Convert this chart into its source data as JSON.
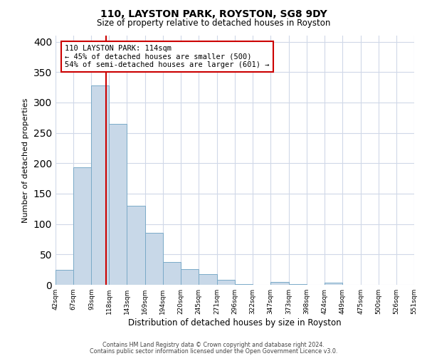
{
  "title": "110, LAYSTON PARK, ROYSTON, SG8 9DY",
  "subtitle": "Size of property relative to detached houses in Royston",
  "xlabel": "Distribution of detached houses by size in Royston",
  "ylabel": "Number of detached properties",
  "bin_edges": [
    42,
    67,
    93,
    118,
    143,
    169,
    194,
    220,
    245,
    271,
    296,
    322,
    347,
    373,
    398,
    424,
    449,
    475,
    500,
    526,
    551
  ],
  "bin_labels": [
    "42sqm",
    "67sqm",
    "93sqm",
    "118sqm",
    "143sqm",
    "169sqm",
    "194sqm",
    "220sqm",
    "245sqm",
    "271sqm",
    "296sqm",
    "322sqm",
    "347sqm",
    "373sqm",
    "398sqm",
    "424sqm",
    "449sqm",
    "475sqm",
    "500sqm",
    "526sqm",
    "551sqm"
  ],
  "counts": [
    25,
    193,
    328,
    265,
    130,
    86,
    38,
    26,
    18,
    8,
    1,
    0,
    5,
    1,
    0,
    3,
    0,
    0,
    0,
    0,
    2
  ],
  "bar_color": "#c8d8e8",
  "bar_edge_color": "#7aaac8",
  "vline_x": 114,
  "vline_color": "#cc0000",
  "annotation_line1": "110 LAYSTON PARK: 114sqm",
  "annotation_line2": "← 45% of detached houses are smaller (500)",
  "annotation_line3": "54% of semi-detached houses are larger (601) →",
  "annotation_box_color": "#ffffff",
  "annotation_box_edge_color": "#cc0000",
  "ylim": [
    0,
    410
  ],
  "yticks": [
    0,
    50,
    100,
    150,
    200,
    250,
    300,
    350,
    400
  ],
  "footer_line1": "Contains HM Land Registry data © Crown copyright and database right 2024.",
  "footer_line2": "Contains public sector information licensed under the Open Government Licence v3.0.",
  "background_color": "#ffffff",
  "grid_color": "#d0d8e8"
}
